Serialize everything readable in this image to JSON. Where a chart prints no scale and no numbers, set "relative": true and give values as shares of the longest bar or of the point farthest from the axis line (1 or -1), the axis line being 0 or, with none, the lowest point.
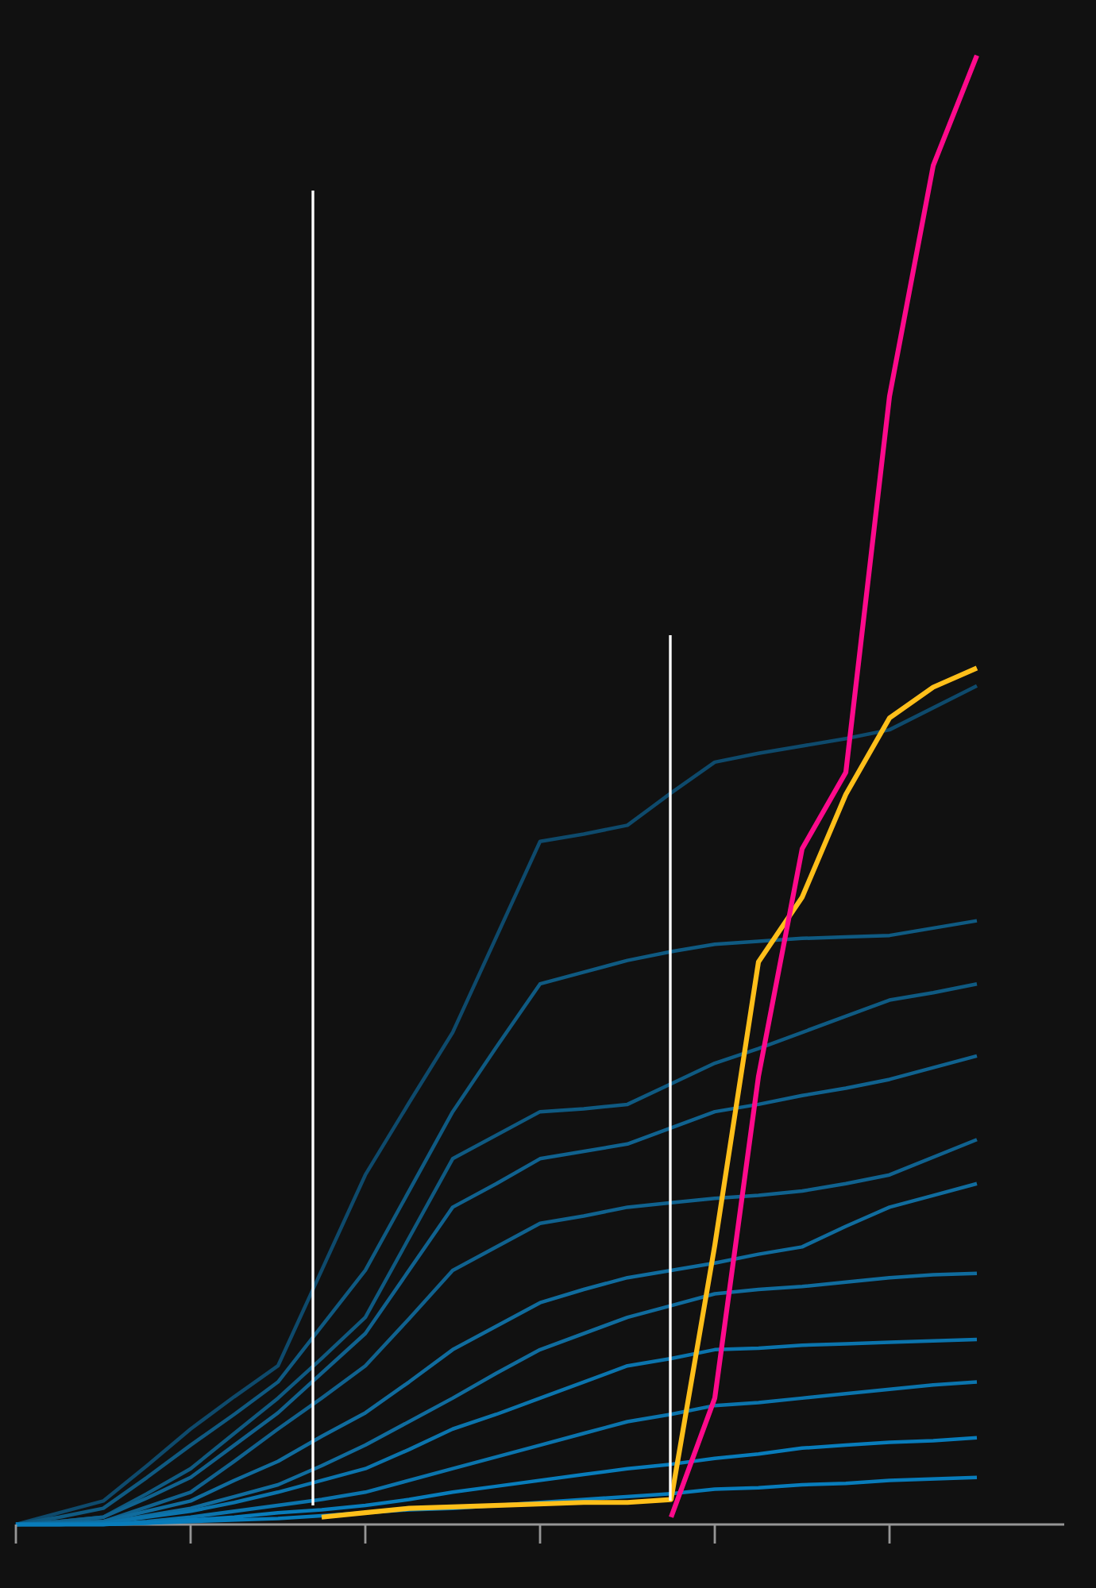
{
  "chart_data": {
    "type": "line",
    "relative": true,
    "marker": "none",
    "categories": [
      null,
      null,
      null,
      null,
      null,
      null,
      null,
      null,
      null,
      null,
      null,
      null,
      null,
      null,
      null,
      null,
      null,
      null,
      null,
      null,
      null,
      null,
      null
    ],
    "series": [
      {
        "color": "#0e4a6c",
        "values": [
          0,
          0.008,
          0.016,
          0.04,
          0.065,
          0.087,
          0.108,
          0.173,
          0.238,
          0.287,
          0.335,
          0.4,
          0.465,
          0.47,
          0.476,
          0.498,
          0.519,
          0.525,
          0.53,
          0.535,
          0.541,
          0.556,
          0.571
        ]
      },
      {
        "color": "#0f5a82",
        "values": [
          0,
          0.005,
          0.011,
          0.032,
          0.054,
          0.075,
          0.097,
          0.135,
          0.173,
          0.227,
          0.281,
          0.325,
          0.368,
          0.376,
          0.384,
          0.39,
          0.395,
          0.397,
          0.399,
          0.4,
          0.401,
          0.406,
          0.411
        ]
      },
      {
        "color": "#0f5a82",
        "values": [
          0,
          0.002,
          0.005,
          0.021,
          0.038,
          0.062,
          0.086,
          0.113,
          0.141,
          0.195,
          0.249,
          0.265,
          0.281,
          0.283,
          0.286,
          0.3,
          0.314,
          0.324,
          0.335,
          0.346,
          0.357,
          0.362,
          0.368
        ]
      },
      {
        "color": "#10628f",
        "values": [
          0,
          0.002,
          0.005,
          0.018,
          0.032,
          0.054,
          0.076,
          0.103,
          0.13,
          0.173,
          0.216,
          0.232,
          0.249,
          0.254,
          0.259,
          0.27,
          0.281,
          0.286,
          0.292,
          0.297,
          0.303,
          0.311,
          0.319
        ]
      },
      {
        "color": "#10628f",
        "values": [
          0,
          0.001,
          0.002,
          0.012,
          0.022,
          0.043,
          0.065,
          0.086,
          0.108,
          0.14,
          0.173,
          0.189,
          0.205,
          0.21,
          0.216,
          0.219,
          0.222,
          0.224,
          0.227,
          0.232,
          0.238,
          0.25,
          0.262
        ]
      },
      {
        "color": "#106c9e",
        "values": [
          0,
          0.001,
          0.002,
          0.009,
          0.016,
          0.03,
          0.043,
          0.06,
          0.076,
          0.097,
          0.119,
          0.135,
          0.151,
          0.16,
          0.168,
          0.173,
          0.178,
          0.184,
          0.189,
          0.203,
          0.216,
          0.224,
          0.232
        ]
      },
      {
        "color": "#106c9e",
        "values": [
          0,
          0,
          0.001,
          0.006,
          0.011,
          0.019,
          0.027,
          0.04,
          0.054,
          0.07,
          0.086,
          0.103,
          0.119,
          0.13,
          0.141,
          0.149,
          0.157,
          0.16,
          0.162,
          0.165,
          0.168,
          0.17,
          0.171
        ]
      },
      {
        "color": "#0b74ad",
        "values": [
          0,
          0,
          0.001,
          0.005,
          0.009,
          0.015,
          0.022,
          0.03,
          0.038,
          0.051,
          0.065,
          0.075,
          0.086,
          0.097,
          0.108,
          0.113,
          0.119,
          0.12,
          0.122,
          0.123,
          0.124,
          0.125,
          0.126
        ]
      },
      {
        "color": "#0b74ad",
        "values": [
          0,
          0,
          0,
          0.002,
          0.005,
          0.009,
          0.013,
          0.017,
          0.022,
          0.03,
          0.038,
          0.046,
          0.054,
          0.062,
          0.07,
          0.075,
          0.081,
          0.083,
          0.086,
          0.089,
          0.092,
          0.095,
          0.097
        ]
      },
      {
        "color": "#087cbb",
        "values": [
          0,
          0,
          0,
          0.001,
          0.003,
          0.005,
          0.008,
          0.01,
          0.013,
          0.017,
          0.022,
          0.026,
          0.03,
          0.034,
          0.038,
          0.041,
          0.045,
          0.048,
          0.052,
          0.054,
          0.056,
          0.057,
          0.059
        ]
      },
      {
        "color": "#087cbb",
        "values": [
          0,
          0,
          0,
          0.001,
          0.002,
          0.003,
          0.004,
          0.006,
          0.008,
          0.01,
          0.011,
          null,
          0.015,
          0.017,
          0.019,
          0.021,
          0.024,
          0.025,
          0.027,
          0.028,
          0.03,
          0.031,
          0.032
        ]
      },
      {
        "color": "#ffbf1a",
        "values": [
          null,
          null,
          null,
          null,
          null,
          null,
          null,
          0.005,
          0.008,
          0.011,
          0.012,
          0.013,
          0.014,
          0.015,
          0.015,
          0.017,
          0.19,
          0.383,
          0.427,
          0.497,
          0.549,
          0.57,
          0.583
        ]
      },
      {
        "color": "#ff0a8c",
        "values": [
          null,
          null,
          null,
          null,
          null,
          null,
          null,
          null,
          null,
          null,
          null,
          null,
          null,
          null,
          null,
          0.005,
          0.086,
          0.305,
          0.46,
          0.512,
          0.768,
          0.925,
          1
        ]
      }
    ]
  }
}
